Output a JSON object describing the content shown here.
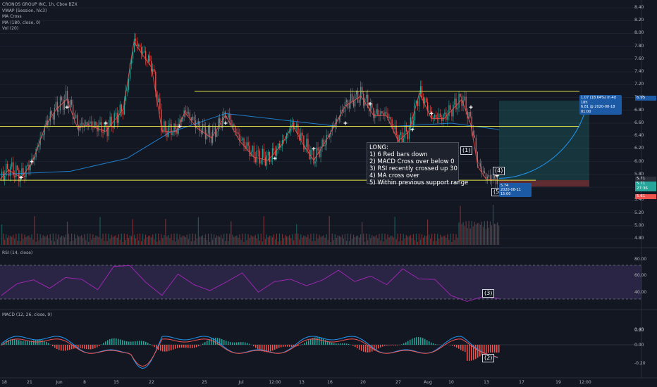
{
  "legend": {
    "symbol": "CRONOS GROUP INC, 1h, Cboe BZX",
    "indicators": [
      "VWAP (Session, hlc3)",
      "MA Cross",
      "MA (180, close, 0)",
      "Vol (20)"
    ]
  },
  "rsi_label": "RSI (14, close)",
  "macd_label": "MACD (12, 26, close, 9)",
  "note": {
    "lines": [
      "LONG:",
      "1) 6 Red bars down",
      "2) MACD Cross over below 0",
      "3) RSI recently crossed up 30",
      "4) MA cross over",
      "5) Within previous support range"
    ]
  },
  "tags": [
    "(1)",
    "(2)",
    "(3)",
    "(4)",
    "(5)"
  ],
  "target_box": {
    "line1": "1.07 (18.64%) in 4d 18h",
    "line2": "6.81 @ 2020-08-18  01:00"
  },
  "current_box": {
    "line1": "5.74",
    "line2": "2020-08-11  15:00"
  },
  "price_axis": [
    "8.40",
    "8.20",
    "8.00",
    "7.80",
    "7.60",
    "7.40",
    "7.20",
    "7.00",
    "6.80",
    "6.60",
    "6.40",
    "6.20",
    "6.00",
    "5.80",
    "5.40",
    "5.20",
    "5.00",
    "4.80"
  ],
  "price_badges": [
    {
      "text": "6.95",
      "color": "#1c5aa6"
    },
    {
      "text": "5.71",
      "color": "#2a2e39"
    },
    {
      "text": "5.71",
      "color": "#26a69a"
    },
    {
      "text": "27:36",
      "color": "#26a69a"
    },
    {
      "text": "5.61",
      "color": "#ef5350"
    }
  ],
  "rsi_axis": [
    "80.00",
    "60.00",
    "40.00"
  ],
  "macd_axis": [
    "0.40",
    "0.20",
    "0.00",
    "-0.20"
  ],
  "time_axis": [
    "18",
    "21",
    "Jun",
    "8",
    "15",
    "22",
    "25",
    "Jul",
    "12:00",
    "13",
    "16",
    "20",
    "27",
    "Aug",
    "10",
    "13",
    "17",
    "19",
    "12:00"
  ],
  "chart_data": {
    "type": "candlestick",
    "title": "CRONOS GROUP INC, 1h, Cboe BZX",
    "ylim": [
      4.7,
      8.5
    ],
    "horizontal_levels": [
      7.1,
      6.55,
      5.71
    ],
    "colors": {
      "up": "#26a69a",
      "down": "#ef5350",
      "level": "#e8e84a",
      "ma": "#2196f3",
      "rsi": "#9c27b0",
      "macd": "#2196f3",
      "signal": "#ef5350"
    },
    "close_path": [
      {
        "x": 0,
        "y": 5.75
      },
      {
        "x": 12,
        "y": 5.9
      },
      {
        "x": 30,
        "y": 5.78
      },
      {
        "x": 45,
        "y": 6.0
      },
      {
        "x": 65,
        "y": 6.6
      },
      {
        "x": 80,
        "y": 6.85
      },
      {
        "x": 95,
        "y": 7.0
      },
      {
        "x": 110,
        "y": 6.55
      },
      {
        "x": 125,
        "y": 6.6
      },
      {
        "x": 150,
        "y": 6.5
      },
      {
        "x": 175,
        "y": 6.85
      },
      {
        "x": 190,
        "y": 7.9
      },
      {
        "x": 205,
        "y": 7.65
      },
      {
        "x": 215,
        "y": 7.5
      },
      {
        "x": 230,
        "y": 6.5
      },
      {
        "x": 250,
        "y": 6.5
      },
      {
        "x": 262,
        "y": 6.8
      },
      {
        "x": 280,
        "y": 6.55
      },
      {
        "x": 300,
        "y": 6.4
      },
      {
        "x": 320,
        "y": 6.75
      },
      {
        "x": 340,
        "y": 6.35
      },
      {
        "x": 360,
        "y": 6.1
      },
      {
        "x": 380,
        "y": 6.05
      },
      {
        "x": 400,
        "y": 6.3
      },
      {
        "x": 415,
        "y": 6.6
      },
      {
        "x": 430,
        "y": 6.3
      },
      {
        "x": 445,
        "y": 6.05
      },
      {
        "x": 465,
        "y": 6.4
      },
      {
        "x": 490,
        "y": 6.9
      },
      {
        "x": 512,
        "y": 7.05
      },
      {
        "x": 530,
        "y": 6.75
      },
      {
        "x": 548,
        "y": 6.75
      },
      {
        "x": 565,
        "y": 6.35
      },
      {
        "x": 580,
        "y": 6.5
      },
      {
        "x": 595,
        "y": 7.1
      },
      {
        "x": 612,
        "y": 6.7
      },
      {
        "x": 630,
        "y": 6.7
      },
      {
        "x": 655,
        "y": 7.0
      },
      {
        "x": 668,
        "y": 6.6
      },
      {
        "x": 678,
        "y": 5.95
      },
      {
        "x": 690,
        "y": 5.75
      },
      {
        "x": 708,
        "y": 5.74
      }
    ],
    "ma180": [
      {
        "x": 0,
        "y": 5.8
      },
      {
        "x": 100,
        "y": 5.85
      },
      {
        "x": 180,
        "y": 6.05
      },
      {
        "x": 240,
        "y": 6.45
      },
      {
        "x": 320,
        "y": 6.75
      },
      {
        "x": 400,
        "y": 6.65
      },
      {
        "x": 480,
        "y": 6.55
      },
      {
        "x": 560,
        "y": 6.55
      },
      {
        "x": 640,
        "y": 6.6
      },
      {
        "x": 708,
        "y": 6.5
      }
    ],
    "rsi_values": [
      38,
      52,
      58,
      45,
      62,
      55,
      48,
      70,
      78,
      50,
      42,
      60,
      55,
      40,
      58,
      62,
      45,
      52,
      60,
      48,
      58,
      68,
      55,
      62,
      50,
      72,
      56,
      60,
      35,
      34,
      33,
      38
    ]
  }
}
